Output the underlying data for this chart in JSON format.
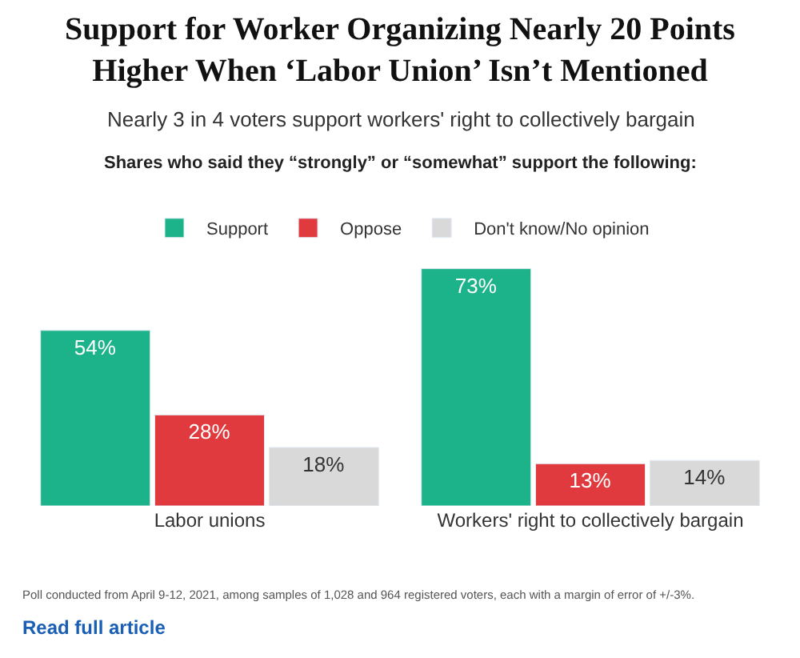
{
  "chart_data": {
    "type": "bar",
    "title": "Support for Worker Organizing Nearly 20 Points Higher When ‘Labor Union’ Isn’t Mentioned",
    "subtitle": "Nearly 3 in 4 voters support workers' right to collectively bargain",
    "annotations": [
      "Shares who said they “strongly” or “somewhat” support the following:",
      "Poll conducted from April 9-12, 2021, among samples of 1,028 and 964 registered voters, each with a margin of error of +/-3%.",
      "Read full article"
    ],
    "categories": [
      "Labor unions",
      "Workers' right to collectively bargain"
    ],
    "series": [
      {
        "name": "Support",
        "color": "#1db38a",
        "values": [
          54,
          73
        ],
        "value_labels": [
          "54%",
          "73%"
        ]
      },
      {
        "name": "Oppose",
        "color": "#e0393e",
        "values": [
          28,
          13
        ],
        "value_labels": [
          "28%",
          "13%"
        ]
      },
      {
        "name": "Don't know/No opinion",
        "color": "#d9d9d9",
        "values": [
          18,
          14
        ],
        "value_labels": [
          "18%",
          "14%"
        ]
      }
    ],
    "legend": "top"
  }
}
